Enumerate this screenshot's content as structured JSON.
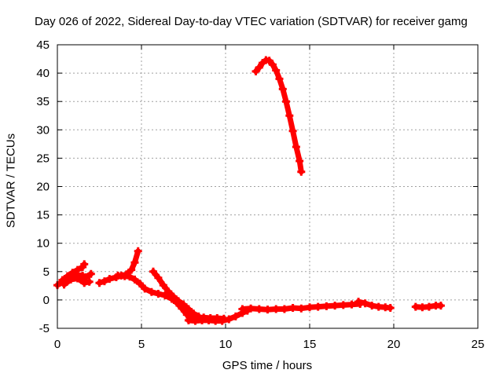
{
  "chart_data": {
    "type": "scatter",
    "title": "Day 026 of 2022, Sidereal Day-to-day VTEC variation (SDTVAR) for receiver gamg",
    "xlabel": "GPS time / hours",
    "ylabel": "SDTVAR / TECUs",
    "xlim": [
      0,
      25
    ],
    "ylim": [
      -5,
      45
    ],
    "xticks": [
      "0",
      "5",
      "10",
      "15",
      "20",
      "25"
    ],
    "yticks": [
      "-5",
      "0",
      "5",
      "10",
      "15",
      "20",
      "25",
      "30",
      "35",
      "40",
      "45"
    ],
    "grid": true,
    "series": [
      {
        "name": "SDTVAR",
        "color": "#ff0000",
        "marker": "plus",
        "segments": [
          [
            [
              0.0,
              2.6
            ],
            [
              0.3,
              3.2
            ],
            [
              0.6,
              3.8
            ],
            [
              0.9,
              4.2
            ],
            [
              1.2,
              4.4
            ],
            [
              1.5,
              4.3
            ],
            [
              1.7,
              4.0
            ],
            [
              2.0,
              4.6
            ]
          ],
          [
            [
              0.3,
              3.5
            ],
            [
              0.6,
              4.2
            ],
            [
              0.9,
              4.8
            ],
            [
              1.2,
              5.3
            ],
            [
              1.5,
              5.8
            ],
            [
              1.6,
              6.3
            ]
          ],
          [
            [
              0.4,
              2.7
            ],
            [
              0.8,
              3.6
            ],
            [
              1.2,
              3.8
            ],
            [
              1.6,
              3.0
            ],
            [
              1.9,
              3.2
            ]
          ],
          [
            [
              2.5,
              3.0
            ],
            [
              2.8,
              3.3
            ],
            [
              3.1,
              3.7
            ],
            [
              3.5,
              4.0
            ],
            [
              3.8,
              4.3
            ],
            [
              4.1,
              4.5
            ],
            [
              4.4,
              5.3
            ],
            [
              4.6,
              6.6
            ],
            [
              4.8,
              8.6
            ]
          ],
          [
            [
              3.6,
              4.3
            ],
            [
              4.0,
              4.2
            ],
            [
              4.3,
              4.1
            ],
            [
              4.6,
              3.6
            ],
            [
              4.9,
              2.9
            ],
            [
              5.2,
              2.0
            ],
            [
              5.6,
              1.4
            ],
            [
              6.0,
              1.1
            ],
            [
              6.4,
              0.8
            ],
            [
              6.8,
              0.2
            ],
            [
              7.1,
              -0.5
            ],
            [
              7.4,
              -1.5
            ],
            [
              7.7,
              -2.6
            ],
            [
              8.0,
              -3.3
            ]
          ],
          [
            [
              5.7,
              5.0
            ],
            [
              6.0,
              3.9
            ],
            [
              6.3,
              2.6
            ],
            [
              6.6,
              1.5
            ],
            [
              6.9,
              0.6
            ],
            [
              7.2,
              -0.2
            ],
            [
              7.5,
              -0.8
            ],
            [
              7.8,
              -1.6
            ],
            [
              8.1,
              -2.4
            ],
            [
              8.4,
              -2.9
            ]
          ],
          [
            [
              7.8,
              -3.6
            ],
            [
              8.2,
              -3.7
            ],
            [
              8.6,
              -3.6
            ],
            [
              9.0,
              -3.6
            ],
            [
              9.4,
              -3.7
            ],
            [
              9.8,
              -3.7
            ],
            [
              10.2,
              -3.4
            ],
            [
              10.6,
              -2.9
            ],
            [
              11.0,
              -2.3
            ],
            [
              11.3,
              -1.9
            ]
          ],
          [
            [
              8.3,
              -3.1
            ],
            [
              8.7,
              -3.1
            ],
            [
              9.1,
              -3.2
            ],
            [
              9.5,
              -3.2
            ],
            [
              9.9,
              -3.3
            ]
          ],
          [
            [
              11.0,
              -1.6
            ],
            [
              11.5,
              -1.5
            ],
            [
              12.0,
              -1.6
            ],
            [
              12.5,
              -1.7
            ],
            [
              13.0,
              -1.6
            ],
            [
              13.5,
              -1.6
            ],
            [
              14.0,
              -1.4
            ],
            [
              14.5,
              -1.5
            ],
            [
              15.0,
              -1.3
            ],
            [
              15.5,
              -1.2
            ],
            [
              16.0,
              -1.1
            ],
            [
              16.5,
              -1.0
            ],
            [
              17.0,
              -0.9
            ],
            [
              17.5,
              -0.8
            ],
            [
              18.0,
              -0.7
            ]
          ],
          [
            [
              17.9,
              -0.3
            ],
            [
              18.3,
              -0.6
            ],
            [
              18.7,
              -1.0
            ],
            [
              19.1,
              -1.2
            ],
            [
              19.5,
              -1.3
            ],
            [
              19.8,
              -1.4
            ]
          ],
          [
            [
              21.3,
              -1.2
            ],
            [
              21.7,
              -1.3
            ],
            [
              22.1,
              -1.2
            ],
            [
              22.5,
              -1.0
            ],
            [
              22.8,
              -1.0
            ]
          ],
          [
            [
              11.8,
              40.3
            ],
            [
              12.0,
              41.0
            ],
            [
              12.2,
              41.8
            ],
            [
              12.4,
              42.3
            ],
            [
              12.6,
              42.2
            ],
            [
              12.8,
              41.5
            ],
            [
              13.0,
              40.5
            ],
            [
              13.2,
              39.0
            ],
            [
              13.4,
              37.2
            ],
            [
              13.6,
              35.0
            ],
            [
              13.8,
              32.5
            ],
            [
              14.0,
              29.8
            ],
            [
              14.2,
              27.0
            ],
            [
              14.4,
              24.5
            ],
            [
              14.5,
              22.6
            ]
          ]
        ]
      }
    ]
  }
}
